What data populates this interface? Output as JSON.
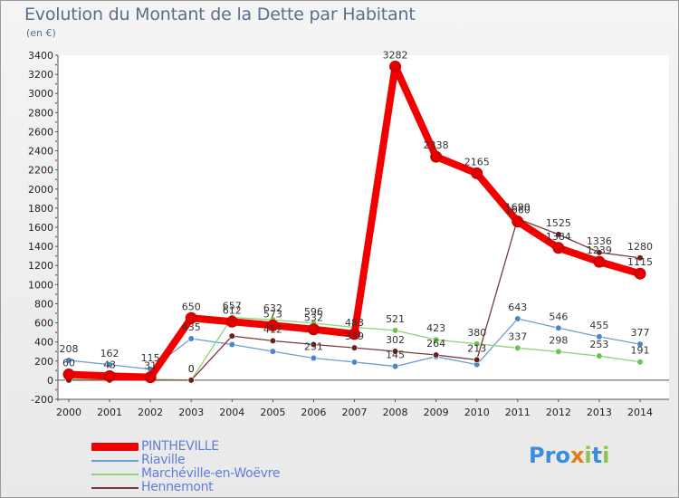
{
  "title": "Evolution du Montant de la Dette par Habitant",
  "subtitle": "(en €)",
  "logo": {
    "text": "Proxiti",
    "letters": [
      "P",
      "r",
      "o",
      "x",
      "i",
      "t",
      "i"
    ],
    "colors": [
      "#3b8dd9",
      "#3b8dd9",
      "#3b8dd9",
      "#e37c1e",
      "#8bc34a",
      "#3b8dd9",
      "#8bc34a"
    ]
  },
  "chart_data": {
    "type": "line",
    "title": "Evolution du Montant de la Dette par Habitant",
    "ylabel": "(en €)",
    "xlabel": "",
    "ylim": [
      -200,
      3400
    ],
    "yticks": [
      -200,
      0,
      200,
      400,
      600,
      800,
      1000,
      1200,
      1400,
      1600,
      1800,
      2000,
      2200,
      2400,
      2600,
      2800,
      3000,
      3200,
      3400
    ],
    "categories": [
      "2000",
      "2001",
      "2002",
      "2003",
      "2004",
      "2005",
      "2006",
      "2007",
      "2008",
      "2009",
      "2010",
      "2011",
      "2012",
      "2013",
      "2014"
    ],
    "series": [
      {
        "name": "Riaville",
        "color": "#6a9fd4",
        "dot": "#4a86c8",
        "width": 1.3,
        "values": [
          208,
          162,
          115,
          435,
          373,
          301,
          231,
          189,
          145,
          247,
          163,
          643,
          546,
          455,
          377
        ],
        "labels": [
          "208",
          "162",
          "115",
          "435",
          "",
          "",
          "231",
          "",
          "145",
          "",
          "",
          "643",
          "546",
          "455",
          "377"
        ]
      },
      {
        "name": "Marchéville-en-Woëvre",
        "color": "#8ed27a",
        "dot": "#6fc24e",
        "width": 1.3,
        "values": [
          11,
          11,
          11,
          0,
          657,
          632,
          596,
          554,
          521,
          423,
          380,
          337,
          298,
          253,
          191
        ],
        "labels": [
          "",
          "",
          "",
          "0",
          "657",
          "632",
          "596",
          "",
          "521",
          "423",
          "380",
          "337",
          "298",
          "253",
          "191"
        ]
      },
      {
        "name": "Hennemont",
        "color": "#7a3a3a",
        "dot": "#6b1f1f",
        "width": 1.3,
        "values": [
          0,
          0,
          0,
          0,
          462,
          412,
          373,
          339,
          302,
          264,
          213,
          1690,
          1525,
          1336,
          1280
        ],
        "labels": [
          "",
          "",
          "",
          "0",
          "",
          "412",
          "",
          "339",
          "302",
          "264",
          "213",
          "1690",
          "1525",
          "1336",
          "1280"
        ]
      },
      {
        "name": "PINTHEVILLE",
        "color": "#f20000",
        "dot": "#e00000",
        "width": 8,
        "values": [
          60,
          43,
          31,
          650,
          612,
          573,
          532,
          483,
          3282,
          2338,
          2165,
          1660,
          1384,
          1239,
          1115
        ],
        "labels": [
          "60",
          "43",
          "31",
          "650",
          "612",
          "573",
          "532",
          "483",
          "3282",
          "2338",
          "2165",
          "1660",
          "1384",
          "1239",
          "1115"
        ]
      }
    ],
    "legend": [
      "PINTHEVILLE",
      "Riaville",
      "Marchéville-en-Woëvre",
      "Hennemont"
    ],
    "legend_position": "bottom-left",
    "grid": false
  }
}
